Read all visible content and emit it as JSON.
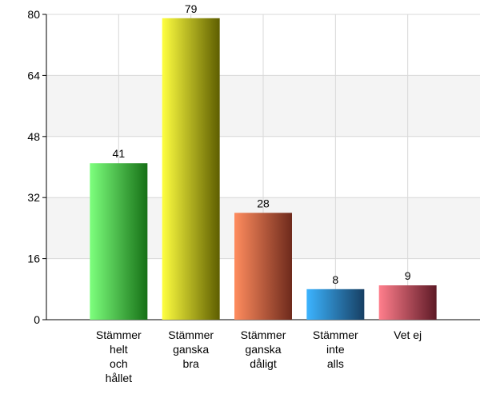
{
  "chart_data": {
    "type": "bar",
    "categories": [
      "Stämmer\nhelt\noch\nhållet",
      "Stämmer\nganska\nbra",
      "Stämmer\nganska\ndåligt",
      "Stämmer\ninte\nalls",
      "Vet ej"
    ],
    "values": [
      41,
      79,
      28,
      8,
      9
    ],
    "colors": [
      [
        "#7dff7d",
        "#167016"
      ],
      [
        "#ffff40",
        "#5e5e00"
      ],
      [
        "#ff8c5e",
        "#6e2a1c"
      ],
      [
        "#3cb4ff",
        "#173f63"
      ],
      [
        "#ff7e8c",
        "#5e1a26"
      ]
    ],
    "ylim": [
      0,
      80
    ],
    "yticks": [
      0,
      16,
      32,
      48,
      64,
      80
    ],
    "grid": true
  }
}
